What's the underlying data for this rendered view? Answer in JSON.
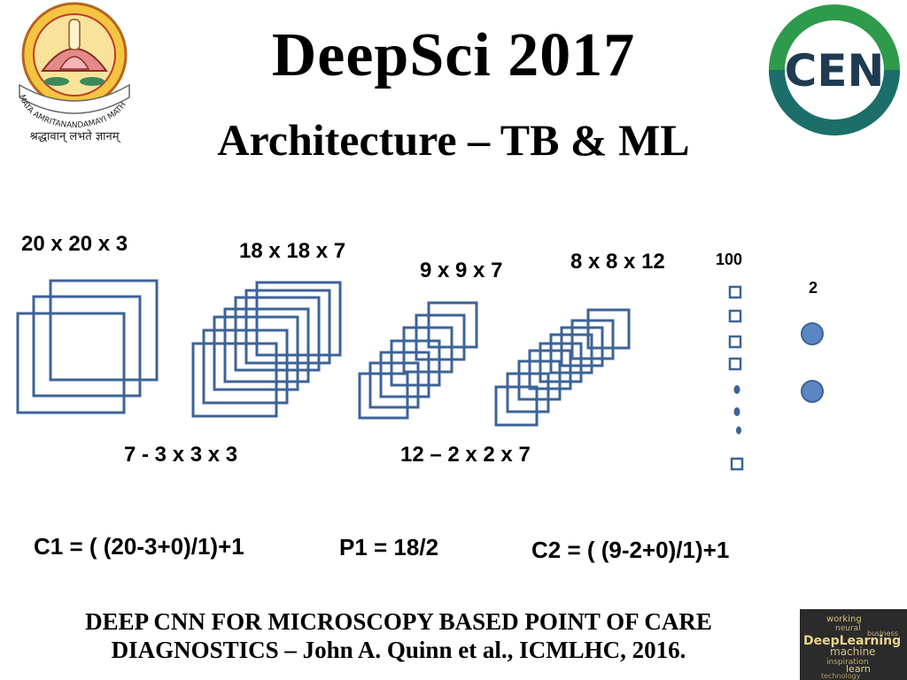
{
  "title": "DeepSci 2017",
  "subtitle": "Architecture – TB & ML",
  "layers": {
    "input": "20 x 20 x 3",
    "conv1_out": "18 x 18 x 7",
    "pool1_out": "9 x 9 x 7",
    "conv2_out": "8 x 8 x 12",
    "fc": "100",
    "output": "2"
  },
  "kernels": {
    "conv1": "7 - 3 x 3 x 3",
    "conv2": "12 – 2 x 2 x 7"
  },
  "formulas": {
    "c1": "C1 = ( (20-3+0)/1)+1",
    "p1": "P1 = 18/2",
    "c2": "C2 = ( (9-2+0)/1)+1"
  },
  "footer": {
    "line1": "DEEP CNN FOR MICROSCOPY BASED POINT OF CARE",
    "line2": "DIAGNOSTICS – John A. Quinn et al., ICMLHC, 2016."
  },
  "logos": {
    "left_emblem_text": "MATA AMRITANANDAMAYI MATH",
    "left_motto": "श्रद्धावान् लभते ज्ञानम्",
    "cen": "CEN",
    "cloud_words": [
      "working",
      "neural",
      "business",
      "DeepLearning",
      "machine",
      "inspiration",
      "learn",
      "technology"
    ]
  },
  "colors": {
    "shape_stroke": "#3d6399",
    "node_fill": "#5b86c4",
    "cen_green": "#2e9a4b",
    "cen_teal": "#1b6e6a"
  }
}
